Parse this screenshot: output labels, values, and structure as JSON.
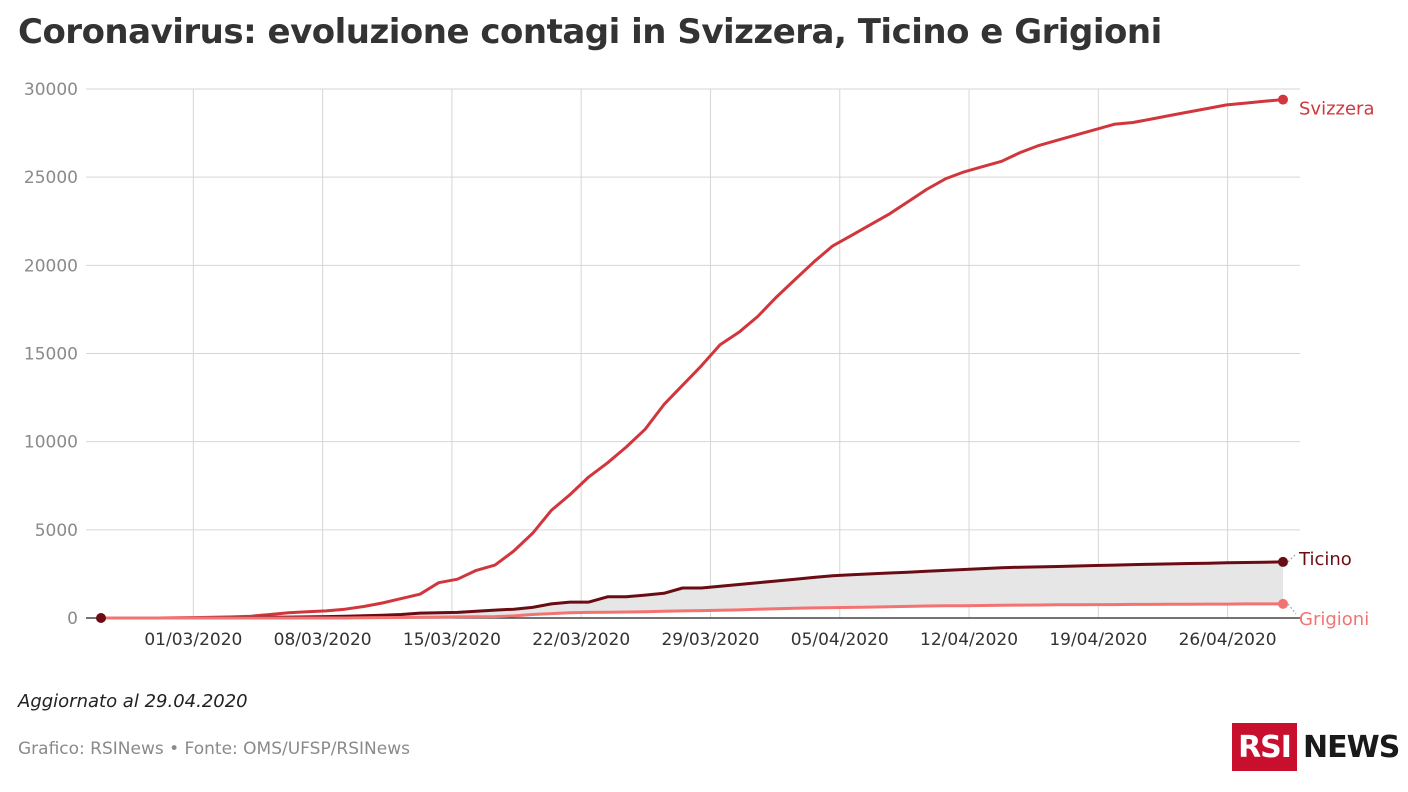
{
  "title": "Coronavirus: evoluzione contagi in Svizzera, Ticino e Grigioni",
  "note": "Aggiornato al 29.04.2020",
  "source": "Grafico: RSINews • Fonte: OMS/UFSP/RSINews",
  "logo": {
    "box_text": "RSI",
    "news_text": "NEWS",
    "brand_color": "#c8102e"
  },
  "chart_data": {
    "type": "line",
    "x_start": "2020-02-25",
    "x_end": "2020-04-29",
    "x_ticks": [
      "01/03/2020",
      "08/03/2020",
      "15/03/2020",
      "22/03/2020",
      "29/03/2020",
      "05/04/2020",
      "12/04/2020",
      "19/04/2020",
      "26/04/2020"
    ],
    "y_ticks": [
      "0",
      "5000",
      "10000",
      "15000",
      "20000",
      "25000",
      "30000"
    ],
    "ylim": [
      0,
      30000
    ],
    "grid": true,
    "shaded_area_between": [
      "Ticino",
      "Grigioni"
    ],
    "series": [
      {
        "name": "Svizzera",
        "color": "#d0363c",
        "values": [
          0,
          0,
          0,
          0,
          10,
          20,
          40,
          60,
          100,
          200,
          300,
          350,
          400,
          500,
          650,
          850,
          1100,
          1350,
          2000,
          2200,
          2700,
          3000,
          3800,
          4800,
          6100,
          7000,
          8000,
          8800,
          9700,
          10700,
          12100,
          13200,
          14300,
          15500,
          16200,
          17100,
          18200,
          19200,
          20200,
          21100,
          21700,
          22300,
          22900,
          23600,
          24300,
          24900,
          25300,
          25600,
          25900,
          26400,
          26800,
          27100,
          27400,
          27700,
          28000,
          28100,
          28300,
          28500,
          28700,
          28900,
          29100,
          29200,
          29300,
          29400
        ]
      },
      {
        "name": "Ticino",
        "color": "#6b0c14",
        "values": [
          0,
          0,
          0,
          0,
          0,
          5,
          10,
          20,
          30,
          40,
          50,
          60,
          80,
          100,
          130,
          160,
          200,
          280,
          300,
          320,
          380,
          450,
          500,
          600,
          800,
          900,
          900,
          1200,
          1200,
          1300,
          1400,
          1700,
          1700,
          1800,
          1900,
          2000,
          2100,
          2200,
          2300,
          2400,
          2450,
          2500,
          2550,
          2600,
          2650,
          2700,
          2750,
          2800,
          2850,
          2880,
          2900,
          2920,
          2950,
          2980,
          3000,
          3030,
          3050,
          3070,
          3090,
          3110,
          3130,
          3150,
          3160,
          3180
        ]
      },
      {
        "name": "Grigioni",
        "color": "#f37373",
        "values": [
          0,
          0,
          0,
          0,
          0,
          0,
          0,
          0,
          0,
          0,
          0,
          0,
          0,
          0,
          10,
          20,
          30,
          40,
          50,
          60,
          70,
          80,
          120,
          200,
          250,
          300,
          320,
          330,
          340,
          350,
          380,
          400,
          420,
          440,
          460,
          500,
          520,
          550,
          570,
          590,
          600,
          620,
          640,
          660,
          680,
          700,
          700,
          710,
          720,
          730,
          740,
          750,
          750,
          760,
          760,
          770,
          770,
          780,
          780,
          790,
          790,
          800,
          800,
          800
        ]
      }
    ]
  }
}
